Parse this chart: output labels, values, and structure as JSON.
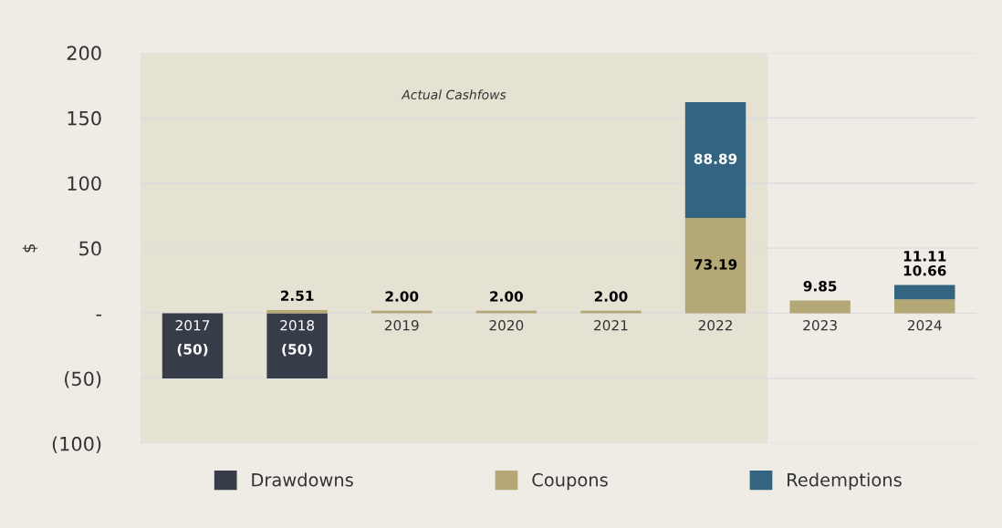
{
  "chart_data": {
    "type": "bar",
    "stacked": true,
    "ylabel": "$",
    "categories": [
      "2017",
      "2018",
      "2019",
      "2020",
      "2021",
      "2022",
      "2023",
      "2024"
    ],
    "series": [
      {
        "name": "Drawdowns",
        "color": "#363d49",
        "values": [
          -50,
          -50,
          null,
          null,
          null,
          null,
          null,
          null
        ],
        "value_labels": [
          "(50)",
          "(50)",
          null,
          null,
          null,
          null,
          null,
          null
        ]
      },
      {
        "name": "Coupons",
        "color": "#b5a877",
        "values": [
          null,
          2.51,
          2.0,
          2.0,
          2.0,
          73.19,
          9.85,
          10.66
        ],
        "value_labels": [
          null,
          "2.51",
          "2.00",
          "2.00",
          "2.00",
          "73.19",
          "9.85",
          "10.66"
        ]
      },
      {
        "name": "Redemptions",
        "color": "#336580",
        "values": [
          null,
          null,
          null,
          null,
          null,
          88.89,
          null,
          11.11
        ],
        "value_labels": [
          null,
          null,
          null,
          null,
          null,
          "88.89",
          null,
          "11.11"
        ]
      }
    ],
    "ylim": [
      -100,
      200
    ],
    "yticks": [
      {
        "value": -100,
        "label": "(100)"
      },
      {
        "value": -50,
        "label": "(50)"
      },
      {
        "value": 0,
        "label": "-"
      },
      50,
      100,
      150,
      200
    ],
    "bands": [
      {
        "axis": "x",
        "from": "2017",
        "to": "2022",
        "label": "Actual Cashfows",
        "color": "#e5e1d3"
      }
    ],
    "grid": "y",
    "legend": "bottom"
  }
}
